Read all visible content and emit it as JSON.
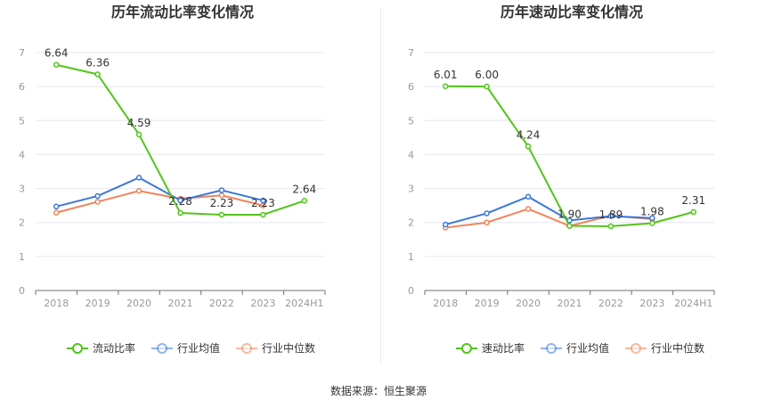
{
  "source_text": "数据来源：恒生聚源",
  "colors": {
    "primary": "#52c41a",
    "industry_avg": "#3c78d8",
    "industry_median": "#f0845a",
    "grid": "#e6e6f0",
    "axis_text": "#999999",
    "label_text": "#333333"
  },
  "chart_data": [
    {
      "type": "line",
      "title": "历年流动比率变化情况",
      "categories": [
        "2018",
        "2019",
        "2020",
        "2021",
        "2022",
        "2023",
        "2024H1"
      ],
      "ylim": [
        0,
        7
      ],
      "yticks": [
        0,
        1,
        2,
        3,
        4,
        5,
        6,
        7
      ],
      "grid": true,
      "legend_position": "bottom",
      "series": [
        {
          "name": "流动比率",
          "color": "#52c41a",
          "values": [
            6.64,
            6.36,
            4.59,
            2.28,
            2.23,
            2.23,
            2.64
          ],
          "labels": [
            "6.64",
            "6.36",
            "4.59",
            "2.28",
            "2.23",
            "2.23",
            "2.64"
          ]
        },
        {
          "name": "行业均值",
          "color": "#3c78d8",
          "values": [
            2.47,
            2.78,
            3.32,
            2.65,
            2.95,
            2.65,
            null
          ]
        },
        {
          "name": "行业中位数",
          "color": "#f0845a",
          "values": [
            2.29,
            2.61,
            2.93,
            2.7,
            2.8,
            2.5,
            null
          ]
        }
      ]
    },
    {
      "type": "line",
      "title": "历年速动比率变化情况",
      "categories": [
        "2018",
        "2019",
        "2020",
        "2021",
        "2022",
        "2023",
        "2024H1"
      ],
      "ylim": [
        0,
        7
      ],
      "yticks": [
        0,
        1,
        2,
        3,
        4,
        5,
        6,
        7
      ],
      "grid": true,
      "legend_position": "bottom",
      "series": [
        {
          "name": "速动比率",
          "color": "#52c41a",
          "values": [
            6.01,
            6.0,
            4.24,
            1.9,
            1.89,
            1.98,
            2.31
          ],
          "labels": [
            "6.01",
            "6.00",
            "4.24",
            "1.90",
            "1.89",
            "1.98",
            "2.31"
          ]
        },
        {
          "name": "行业均值",
          "color": "#3c78d8",
          "values": [
            1.94,
            2.27,
            2.76,
            2.06,
            2.19,
            2.13,
            null
          ]
        },
        {
          "name": "行业中位数",
          "color": "#f0845a",
          "values": [
            1.85,
            2.0,
            2.4,
            1.9,
            2.2,
            2.1,
            null
          ]
        }
      ]
    }
  ]
}
